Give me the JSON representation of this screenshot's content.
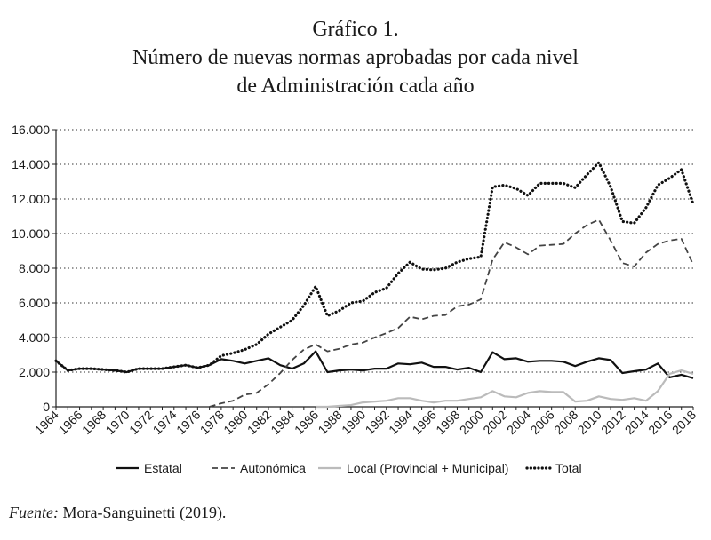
{
  "title_lines": [
    "Gráfico 1.",
    "Número de nuevas normas aprobadas por cada nivel",
    "de Administración cada año"
  ],
  "source": {
    "label": "Fuente:",
    "text": "Mora-Sanguinetti (2019)."
  },
  "chart_data": {
    "type": "line",
    "title": "Número de nuevas normas aprobadas por cada nivel de Administración cada año",
    "xlabel": "",
    "ylabel": "",
    "ylim": [
      0,
      16000
    ],
    "yticks": [
      0,
      2000,
      4000,
      6000,
      8000,
      10000,
      12000,
      14000,
      16000
    ],
    "ytick_labels": [
      "0",
      "2.000",
      "4.000",
      "6.000",
      "8.000",
      "10.000",
      "12.000",
      "14.000",
      "16.000"
    ],
    "xlim": [
      1964,
      2018
    ],
    "xticks": [
      1964,
      1966,
      1968,
      1970,
      1972,
      1974,
      1976,
      1978,
      1980,
      1982,
      1984,
      1986,
      1988,
      1990,
      1992,
      1994,
      1996,
      1998,
      2000,
      2002,
      2004,
      2006,
      2008,
      2010,
      2012,
      2014,
      2016,
      2018
    ],
    "grid": "horizontal dotted",
    "legend": "bottom",
    "x": [
      1964,
      1965,
      1966,
      1967,
      1968,
      1969,
      1970,
      1971,
      1972,
      1973,
      1974,
      1975,
      1976,
      1977,
      1978,
      1979,
      1980,
      1981,
      1982,
      1983,
      1984,
      1985,
      1986,
      1987,
      1988,
      1989,
      1990,
      1991,
      1992,
      1993,
      1994,
      1995,
      1996,
      1997,
      1998,
      1999,
      2000,
      2001,
      2002,
      2003,
      2004,
      2005,
      2006,
      2007,
      2008,
      2009,
      2010,
      2011,
      2012,
      2013,
      2014,
      2015,
      2016,
      2017,
      2018
    ],
    "series": [
      {
        "name": "Estatal",
        "style": "solid",
        "color": "#111111",
        "values": [
          2650,
          2100,
          2200,
          2200,
          2150,
          2100,
          2000,
          2200,
          2200,
          2200,
          2300,
          2400,
          2250,
          2400,
          2750,
          2650,
          2500,
          2650,
          2800,
          2400,
          2200,
          2500,
          3200,
          2000,
          2100,
          2150,
          2100,
          2200,
          2200,
          2500,
          2450,
          2550,
          2300,
          2300,
          2150,
          2250,
          2000,
          3150,
          2750,
          2800,
          2600,
          2650,
          2650,
          2600,
          2350,
          2600,
          2800,
          2700,
          1950,
          2050,
          2150,
          2500,
          1700,
          1850,
          1650
        ]
      },
      {
        "name": "Autonómica",
        "style": "dashed",
        "color": "#444444",
        "values": [
          null,
          null,
          null,
          null,
          null,
          null,
          null,
          null,
          null,
          null,
          null,
          null,
          null,
          0,
          200,
          350,
          700,
          800,
          1300,
          1950,
          2700,
          3300,
          3600,
          3200,
          3350,
          3600,
          3700,
          4000,
          4250,
          4550,
          5200,
          5050,
          5250,
          5300,
          5800,
          5900,
          6200,
          8500,
          9500,
          9200,
          8800,
          9300,
          9350,
          9400,
          10000,
          10500,
          10800,
          9600,
          8300,
          8100,
          8900,
          9400,
          9600,
          9700,
          8200
        ]
      },
      {
        "name": "Local (Provincial + Municipal)",
        "style": "solid",
        "color": "#bbbbbb",
        "values": [
          null,
          null,
          null,
          null,
          null,
          null,
          null,
          null,
          null,
          null,
          null,
          null,
          null,
          null,
          null,
          null,
          null,
          null,
          null,
          null,
          null,
          null,
          0,
          0,
          50,
          100,
          250,
          300,
          350,
          500,
          500,
          350,
          250,
          350,
          350,
          450,
          550,
          900,
          600,
          550,
          800,
          900,
          850,
          850,
          300,
          350,
          600,
          450,
          400,
          500,
          350,
          900,
          1900,
          2100,
          1900
        ]
      },
      {
        "name": "Total",
        "style": "dotted",
        "color": "#111111",
        "values": [
          2650,
          2100,
          2200,
          2200,
          2150,
          2100,
          2000,
          2200,
          2200,
          2200,
          2300,
          2400,
          2250,
          2400,
          2950,
          3100,
          3300,
          3600,
          4200,
          4600,
          5000,
          5850,
          6950,
          5250,
          5550,
          6000,
          6100,
          6600,
          6850,
          7700,
          8350,
          7950,
          7900,
          8000,
          8350,
          8550,
          8650,
          12700,
          12800,
          12600,
          12200,
          12900,
          12900,
          12900,
          12650,
          13400,
          14100,
          12700,
          10700,
          10600,
          11500,
          12800,
          13200,
          13700,
          11700
        ]
      }
    ]
  }
}
